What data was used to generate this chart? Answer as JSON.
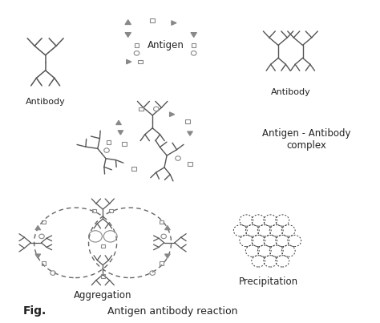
{
  "background_color": "#ffffff",
  "title_fig": "Fig.",
  "title_main": "Antigen antibody reaction",
  "label_antibody_left": "Antibody",
  "label_antibody_right": "Antibody",
  "label_antigen": "Antigen",
  "label_complex": "Antigen - Antibody\ncomplex",
  "label_aggregation": "Aggregation",
  "label_precipitation": "Precipitation",
  "gray": "#888888",
  "dark": "#222222",
  "line_color": "#555555",
  "fig_w": 4.74,
  "fig_h": 4.03,
  "dpi": 100
}
